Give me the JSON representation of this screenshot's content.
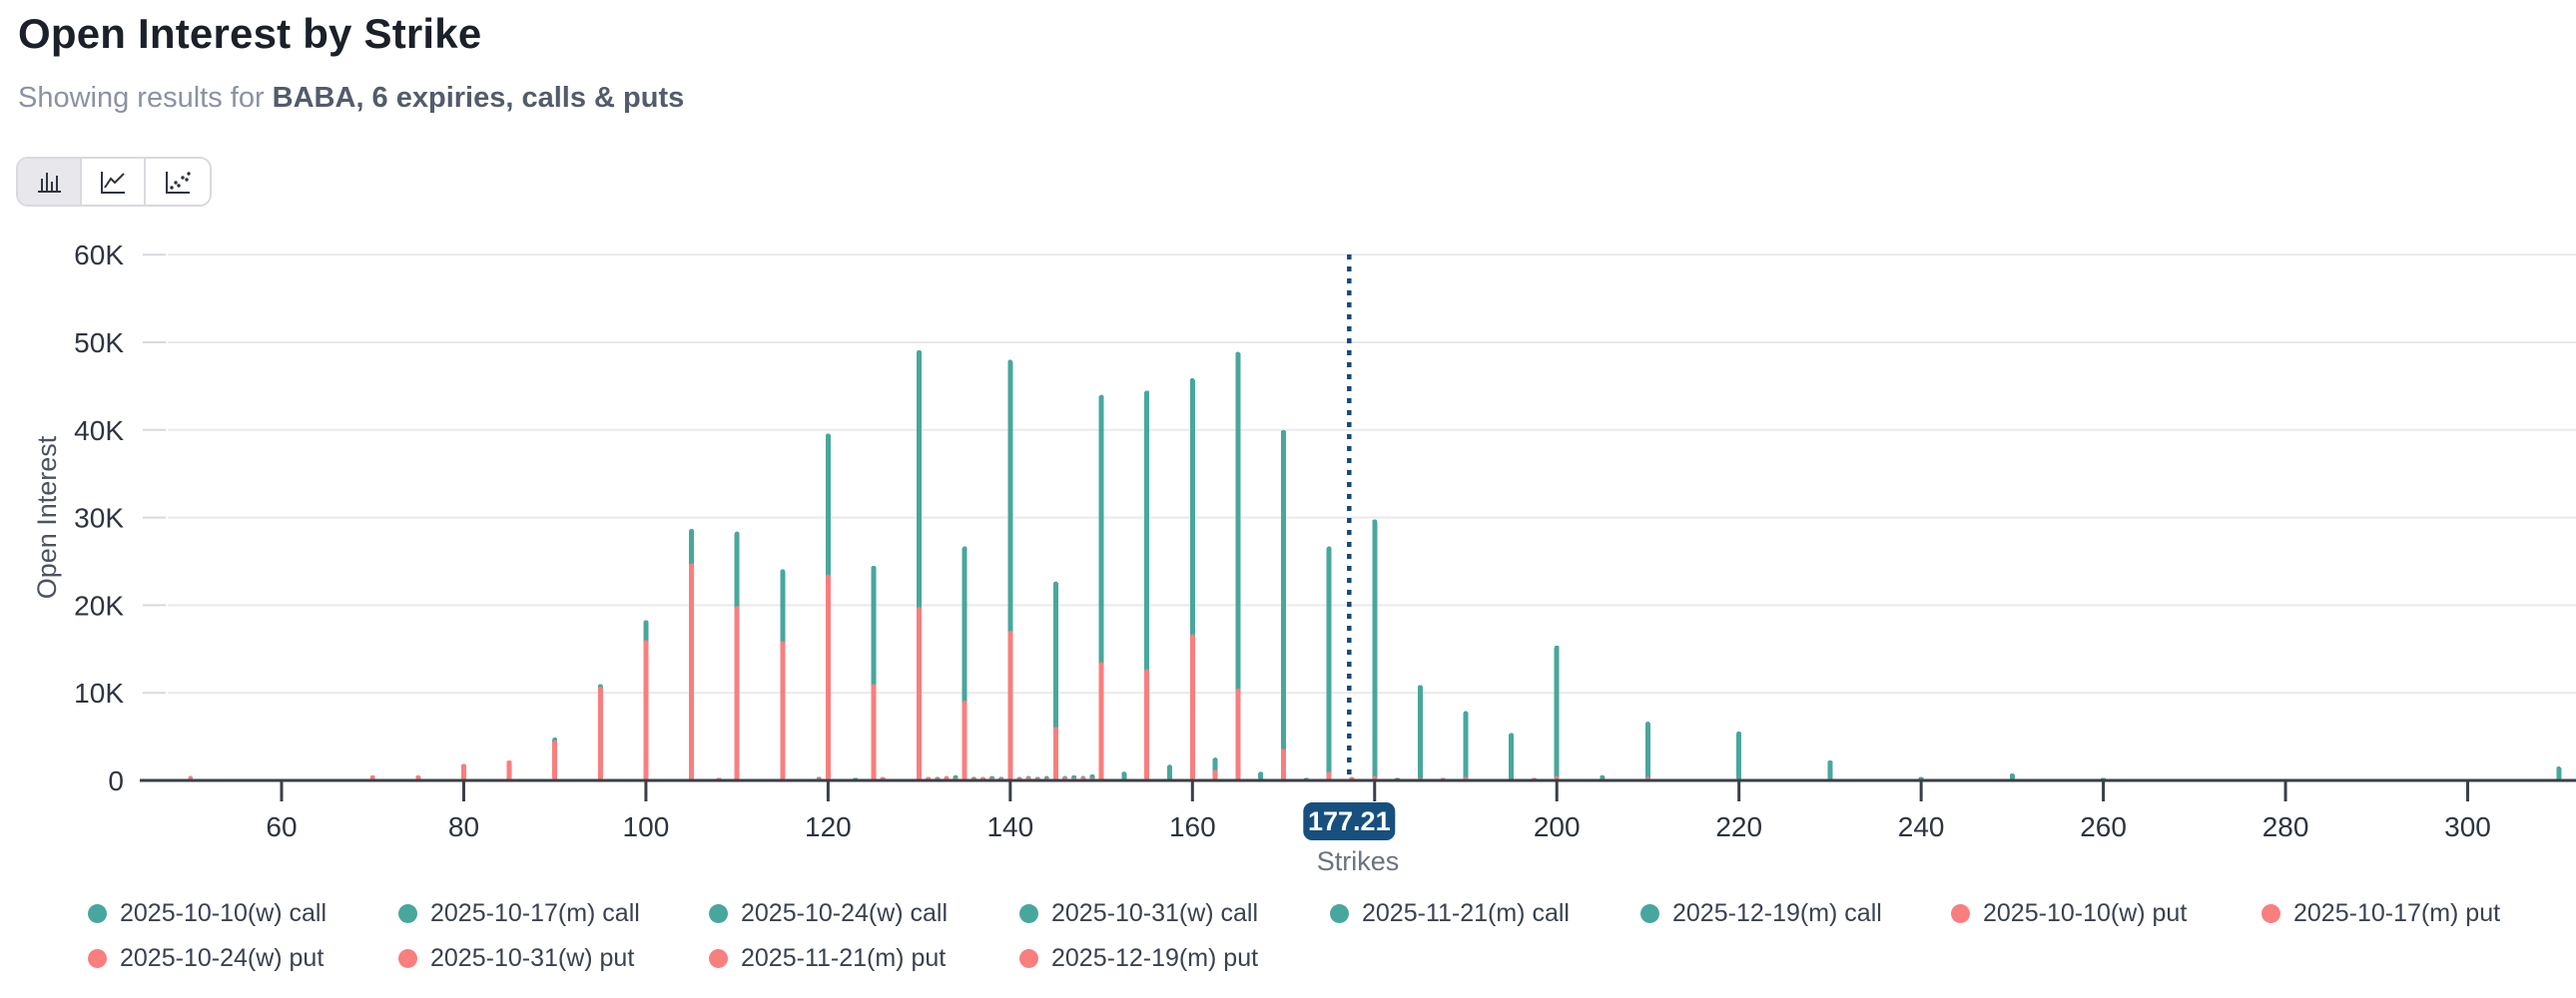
{
  "header": {
    "title": "Open Interest by Strike",
    "subtitle_prefix": "Showing results for ",
    "subtitle_strong": "BABA, 6 expiries, calls & puts"
  },
  "toolbar": {
    "buttons": [
      {
        "id": "bar-chart",
        "active": true
      },
      {
        "id": "line-chart",
        "active": false
      },
      {
        "id": "scatter-chart",
        "active": false
      }
    ]
  },
  "colors": {
    "call": "#48a79c",
    "put": "#f97e7e",
    "price_line": "#14497b",
    "badge_bg": "#17507e",
    "badge_text": "#ffffff",
    "grid": "#e9e9ec",
    "y_dash": "#d9d9de",
    "axis": "#3a3f47",
    "tick_label": "#2e3440",
    "muted_label": "#6b7280",
    "y_title": "#4c5260"
  },
  "legend": {
    "items": [
      {
        "label": "2025-10-10(w) call",
        "type": "call"
      },
      {
        "label": "2025-10-17(m) call",
        "type": "call"
      },
      {
        "label": "2025-10-24(w) call",
        "type": "call"
      },
      {
        "label": "2025-10-31(w) call",
        "type": "call"
      },
      {
        "label": "2025-11-21(m) call",
        "type": "call"
      },
      {
        "label": "2025-12-19(m) call",
        "type": "call"
      },
      {
        "label": "2025-10-10(w) put",
        "type": "put"
      },
      {
        "label": "2025-10-17(m) put",
        "type": "put"
      },
      {
        "label": "2025-10-24(w) put",
        "type": "put"
      },
      {
        "label": "2025-10-31(w) put",
        "type": "put"
      },
      {
        "label": "2025-11-21(m) put",
        "type": "put"
      },
      {
        "label": "2025-12-19(m) put",
        "type": "put"
      }
    ]
  },
  "chart_data": {
    "type": "bar",
    "title": "Open Interest by Strike",
    "xlabel": "Strikes",
    "ylabel": "Open Interest",
    "grid": true,
    "legend_position": "bottom",
    "xlim": [
      45,
      312
    ],
    "ylim": [
      0,
      60000
    ],
    "x_ticks": [
      60,
      80,
      100,
      120,
      140,
      160,
      180,
      200,
      220,
      240,
      260,
      280,
      300
    ],
    "hidden_x_tick_label": 180,
    "y_ticks": [
      0,
      10000,
      20000,
      30000,
      40000,
      50000,
      60000
    ],
    "y_tick_labels": [
      "0",
      "10K",
      "20K",
      "30K",
      "40K",
      "50K",
      "60K"
    ],
    "price_marker": {
      "value": 177.21,
      "label": "177.21"
    },
    "series_meaning": "call = total call open interest (teal, drawn behind), put = total put open interest (red, drawn in front) at each strike",
    "strikes": [
      {
        "strike": 50,
        "call": 0,
        "put": 500
      },
      {
        "strike": 70,
        "call": 0,
        "put": 600
      },
      {
        "strike": 75,
        "call": 0,
        "put": 600
      },
      {
        "strike": 80,
        "call": 0,
        "put": 1900
      },
      {
        "strike": 85,
        "call": 0,
        "put": 2300
      },
      {
        "strike": 90,
        "call": 4900,
        "put": 4600
      },
      {
        "strike": 95,
        "call": 11000,
        "put": 10700
      },
      {
        "strike": 100,
        "call": 18300,
        "put": 16000
      },
      {
        "strike": 105,
        "call": 28700,
        "put": 24800
      },
      {
        "strike": 108,
        "call": 0,
        "put": 300
      },
      {
        "strike": 110,
        "call": 28400,
        "put": 19900
      },
      {
        "strike": 115,
        "call": 24100,
        "put": 15900
      },
      {
        "strike": 119,
        "call": 400,
        "put": 300
      },
      {
        "strike": 120,
        "call": 39600,
        "put": 23500
      },
      {
        "strike": 123,
        "call": 300,
        "put": 0
      },
      {
        "strike": 125,
        "call": 24500,
        "put": 11000
      },
      {
        "strike": 126,
        "call": 0,
        "put": 400
      },
      {
        "strike": 130,
        "call": 49100,
        "put": 19800
      },
      {
        "strike": 131,
        "call": 300,
        "put": 400
      },
      {
        "strike": 132,
        "call": 400,
        "put": 300
      },
      {
        "strike": 133,
        "call": 300,
        "put": 500
      },
      {
        "strike": 134,
        "call": 600,
        "put": 300
      },
      {
        "strike": 135,
        "call": 26700,
        "put": 9100
      },
      {
        "strike": 136,
        "call": 400,
        "put": 300
      },
      {
        "strike": 137,
        "call": 400,
        "put": 400
      },
      {
        "strike": 138,
        "call": 500,
        "put": 300
      },
      {
        "strike": 139,
        "call": 400,
        "put": 300
      },
      {
        "strike": 140,
        "call": 48000,
        "put": 17100
      },
      {
        "strike": 141,
        "call": 400,
        "put": 300
      },
      {
        "strike": 142,
        "call": 500,
        "put": 400
      },
      {
        "strike": 143,
        "call": 400,
        "put": 300
      },
      {
        "strike": 144,
        "call": 500,
        "put": 300
      },
      {
        "strike": 145,
        "call": 22700,
        "put": 6100
      },
      {
        "strike": 146,
        "call": 500,
        "put": 400
      },
      {
        "strike": 147,
        "call": 600,
        "put": 300
      },
      {
        "strike": 148,
        "call": 500,
        "put": 400
      },
      {
        "strike": 149,
        "call": 700,
        "put": 300
      },
      {
        "strike": 150,
        "call": 44000,
        "put": 13500
      },
      {
        "strike": 152.5,
        "call": 1000,
        "put": 0
      },
      {
        "strike": 155,
        "call": 44500,
        "put": 12700
      },
      {
        "strike": 157.5,
        "call": 1800,
        "put": 0
      },
      {
        "strike": 160,
        "call": 45900,
        "put": 16700
      },
      {
        "strike": 162.5,
        "call": 2600,
        "put": 1200
      },
      {
        "strike": 165,
        "call": 48900,
        "put": 10500
      },
      {
        "strike": 167.5,
        "call": 1000,
        "put": 0
      },
      {
        "strike": 170,
        "call": 40000,
        "put": 3600
      },
      {
        "strike": 172.5,
        "call": 300,
        "put": 0
      },
      {
        "strike": 175,
        "call": 26700,
        "put": 1000
      },
      {
        "strike": 177.5,
        "call": 300,
        "put": 400
      },
      {
        "strike": 180,
        "call": 29800,
        "put": 500
      },
      {
        "strike": 182.5,
        "call": 300,
        "put": 0
      },
      {
        "strike": 185,
        "call": 10900,
        "put": 300
      },
      {
        "strike": 187.5,
        "call": 0,
        "put": 300
      },
      {
        "strike": 190,
        "call": 7900,
        "put": 400
      },
      {
        "strike": 195,
        "call": 5400,
        "put": 0
      },
      {
        "strike": 197.5,
        "call": 0,
        "put": 300
      },
      {
        "strike": 200,
        "call": 15400,
        "put": 500
      },
      {
        "strike": 205,
        "call": 600,
        "put": 0
      },
      {
        "strike": 210,
        "call": 6700,
        "put": 400
      },
      {
        "strike": 220,
        "call": 5600,
        "put": 0
      },
      {
        "strike": 230,
        "call": 2300,
        "put": 0
      },
      {
        "strike": 240,
        "call": 400,
        "put": 0
      },
      {
        "strike": 250,
        "call": 800,
        "put": 0
      },
      {
        "strike": 260,
        "call": 300,
        "put": 0
      },
      {
        "strike": 310,
        "call": 1600,
        "put": 0
      }
    ]
  }
}
